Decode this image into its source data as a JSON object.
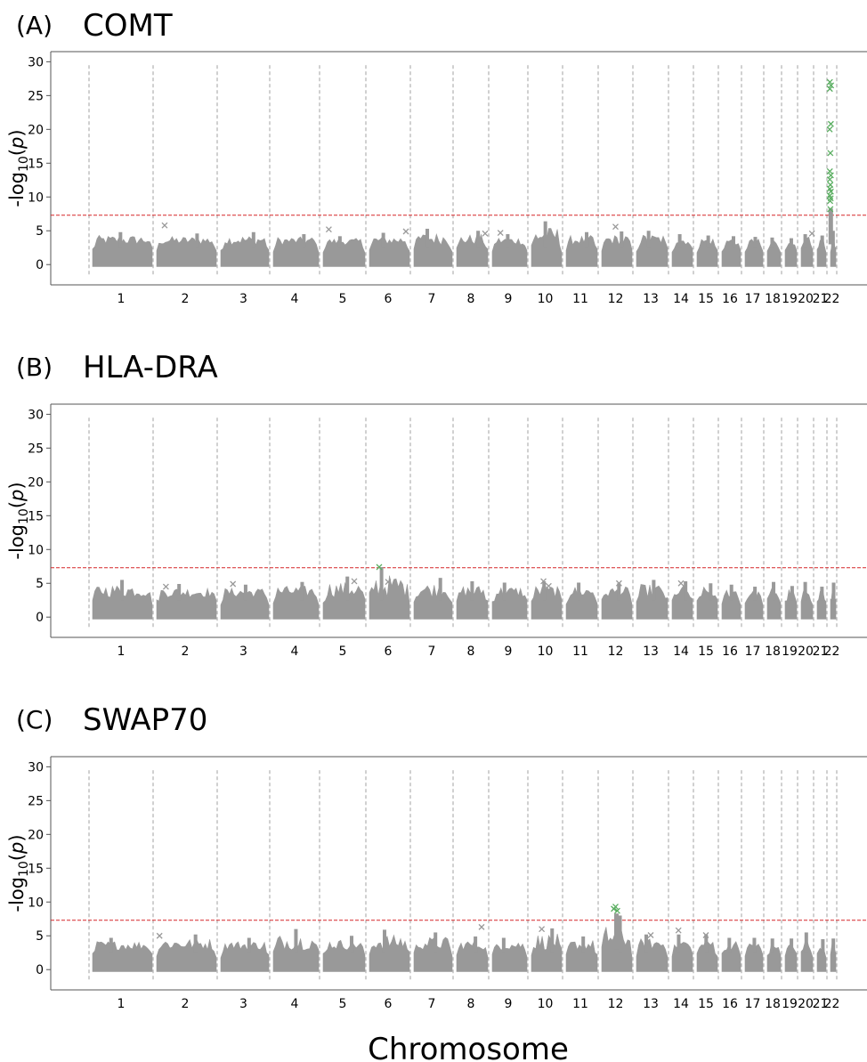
{
  "figure": {
    "xlabel": "Chromosome",
    "ylabel_prefix": "-log",
    "ylabel_sub": "10",
    "ylabel_open": "(",
    "ylabel_p": "p",
    "ylabel_close": ")"
  },
  "colors": {
    "points": "#999999",
    "significant": "#5aae61",
    "threshold": "#d62728",
    "boundary": "#a0a0a0",
    "axis": "#555555",
    "text": "#000000"
  },
  "chart_data": [
    {
      "type": "scatter",
      "marker": "x",
      "panel_label": "(A)",
      "title": "COMT",
      "threshold": 7.3,
      "ylim": [
        -3,
        31.5
      ],
      "yticks": [
        0,
        5,
        10,
        15,
        20,
        25,
        30
      ],
      "chromosomes": [
        "1",
        "2",
        "3",
        "4",
        "5",
        "6",
        "7",
        "8",
        "9",
        "10",
        "11",
        "12",
        "13",
        "14",
        "15",
        "16",
        "17",
        "18",
        "19",
        "20",
        "21",
        "22"
      ],
      "peak_levels": [
        4.8,
        4.6,
        4.8,
        4.5,
        4.2,
        4.7,
        5.3,
        5.0,
        4.5,
        6.4,
        4.8,
        4.9,
        5.0,
        4.5,
        4.3,
        4.2,
        4.1,
        4.0,
        3.9,
        4.5,
        4.3,
        5.0
      ],
      "outliers": [
        {
          "chr": "2",
          "pos": 0.18,
          "y": 5.8
        },
        {
          "chr": "5",
          "pos": 0.2,
          "y": 5.2
        },
        {
          "chr": "6",
          "pos": 0.9,
          "y": 4.9
        },
        {
          "chr": "8",
          "pos": 0.9,
          "y": 4.6
        },
        {
          "chr": "9",
          "pos": 0.3,
          "y": 4.7
        },
        {
          "chr": "12",
          "pos": 0.5,
          "y": 5.6
        },
        {
          "chr": "20",
          "pos": 0.9,
          "y": 4.6
        }
      ],
      "significant_points": [
        {
          "chr": "22",
          "pos": 0.3,
          "y": 27.0
        },
        {
          "chr": "22",
          "pos": 0.42,
          "y": 26.5
        },
        {
          "chr": "22",
          "pos": 0.3,
          "y": 26.0
        },
        {
          "chr": "22",
          "pos": 0.4,
          "y": 20.8
        },
        {
          "chr": "22",
          "pos": 0.28,
          "y": 20.0
        },
        {
          "chr": "22",
          "pos": 0.35,
          "y": 16.5
        },
        {
          "chr": "22",
          "pos": 0.3,
          "y": 13.8
        },
        {
          "chr": "22",
          "pos": 0.4,
          "y": 13.2
        },
        {
          "chr": "22",
          "pos": 0.3,
          "y": 12.6
        },
        {
          "chr": "22",
          "pos": 0.35,
          "y": 11.8
        },
        {
          "chr": "22",
          "pos": 0.3,
          "y": 11.2
        },
        {
          "chr": "22",
          "pos": 0.4,
          "y": 10.8
        },
        {
          "chr": "22",
          "pos": 0.3,
          "y": 10.2
        },
        {
          "chr": "22",
          "pos": 0.38,
          "y": 9.8
        },
        {
          "chr": "22",
          "pos": 0.33,
          "y": 9.4
        },
        {
          "chr": "22",
          "pos": 0.35,
          "y": 8.2
        }
      ]
    },
    {
      "type": "scatter",
      "marker": "x",
      "panel_label": "(B)",
      "title": "HLA-DRA",
      "threshold": 7.3,
      "ylim": [
        -3,
        31.5
      ],
      "yticks": [
        0,
        5,
        10,
        15,
        20,
        25,
        30
      ],
      "chromosomes": [
        "1",
        "2",
        "3",
        "4",
        "5",
        "6",
        "7",
        "8",
        "9",
        "10",
        "11",
        "12",
        "13",
        "14",
        "15",
        "16",
        "17",
        "18",
        "19",
        "20",
        "21",
        "22"
      ],
      "peak_levels": [
        5.5,
        4.9,
        4.8,
        5.2,
        6.0,
        7.4,
        5.8,
        5.3,
        5.1,
        5.3,
        5.1,
        5.0,
        5.5,
        5.3,
        5.0,
        4.8,
        4.5,
        5.2,
        4.6,
        5.2,
        4.5,
        5.1
      ],
      "outliers": [
        {
          "chr": "2",
          "pos": 0.2,
          "y": 4.5
        },
        {
          "chr": "3",
          "pos": 0.3,
          "y": 4.9
        },
        {
          "chr": "5",
          "pos": 0.75,
          "y": 5.3
        },
        {
          "chr": "6",
          "pos": 0.5,
          "y": 5.2
        },
        {
          "chr": "10",
          "pos": 0.45,
          "y": 5.3
        },
        {
          "chr": "10",
          "pos": 0.6,
          "y": 4.6
        },
        {
          "chr": "12",
          "pos": 0.6,
          "y": 5.0
        },
        {
          "chr": "14",
          "pos": 0.5,
          "y": 5.0
        }
      ],
      "significant_points": [
        {
          "chr": "6",
          "pos": 0.3,
          "y": 7.4
        }
      ]
    },
    {
      "type": "scatter",
      "marker": "x",
      "panel_label": "(C)",
      "title": "SWAP70",
      "threshold": 7.3,
      "ylim": [
        -3,
        31.5
      ],
      "yticks": [
        0,
        5,
        10,
        15,
        20,
        25,
        30
      ],
      "chromosomes": [
        "1",
        "2",
        "3",
        "4",
        "5",
        "6",
        "7",
        "8",
        "9",
        "10",
        "11",
        "12",
        "13",
        "14",
        "15",
        "16",
        "17",
        "18",
        "19",
        "20",
        "21",
        "22"
      ],
      "peak_levels": [
        4.7,
        5.2,
        4.7,
        6.0,
        5.0,
        5.9,
        5.5,
        4.9,
        4.7,
        6.1,
        4.9,
        8.0,
        5.2,
        5.2,
        5.2,
        4.7,
        4.7,
        4.6,
        4.6,
        5.5,
        4.5,
        4.6
      ],
      "outliers": [
        {
          "chr": "2",
          "pos": 0.1,
          "y": 5.0
        },
        {
          "chr": "8",
          "pos": 0.8,
          "y": 6.3
        },
        {
          "chr": "10",
          "pos": 0.4,
          "y": 6.0
        },
        {
          "chr": "13",
          "pos": 0.5,
          "y": 5.1
        },
        {
          "chr": "14",
          "pos": 0.4,
          "y": 5.8
        },
        {
          "chr": "15",
          "pos": 0.5,
          "y": 5.1
        }
      ],
      "significant_points": [
        {
          "chr": "12",
          "pos": 0.5,
          "y": 9.3
        },
        {
          "chr": "12",
          "pos": 0.45,
          "y": 9.0
        },
        {
          "chr": "12",
          "pos": 0.55,
          "y": 8.7
        }
      ]
    }
  ]
}
